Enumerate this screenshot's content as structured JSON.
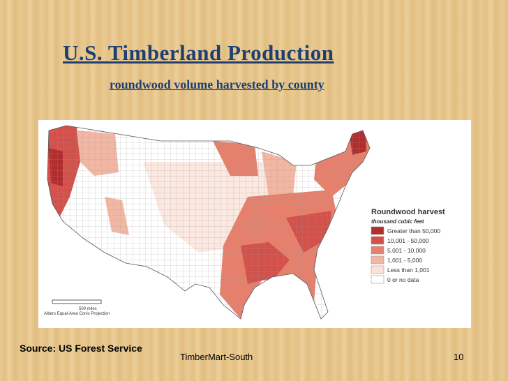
{
  "header": {
    "title": "U.S. Timberland Production",
    "subtitle": "roundwood volume harvested by county"
  },
  "map": {
    "legend": {
      "title": "Roundwood harvest",
      "subtitle": "thousand cubic feet",
      "items": [
        "Greater than 50,000",
        "10,001 - 50,000",
        "5,001 - 10,000",
        "1,001 - 5,000",
        "Less than 1,001",
        "0 or no data"
      ]
    },
    "scale": "500 miles",
    "projection": "Albers Equal-Area Conic Projection"
  },
  "footer": {
    "source": "Source:  US Forest Service",
    "text": "TimberMart-South",
    "page": "10"
  }
}
